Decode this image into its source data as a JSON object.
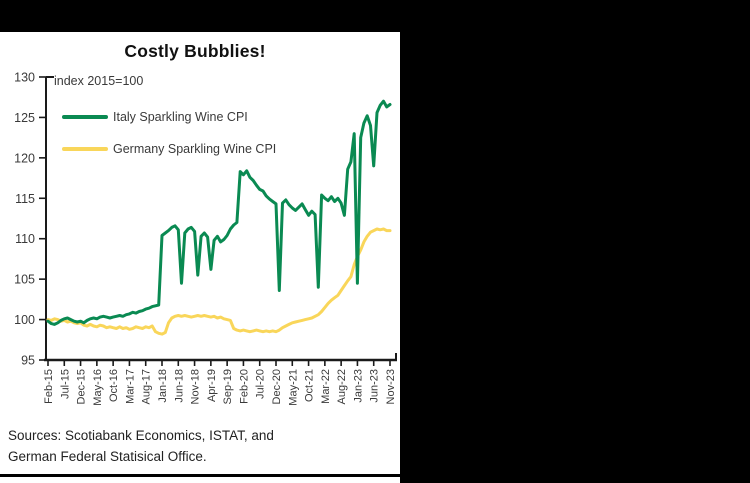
{
  "window": {
    "background_color": "#000000",
    "card_background": "#ffffff"
  },
  "card": {
    "title": "Costly Bubblies!",
    "axis_note": "index 2015=100",
    "source_line1": "Sources: Scotiabank Economics, ISTAT, and",
    "source_line2": "German Federal Statisical Office."
  },
  "chart_data": {
    "type": "line",
    "title": "Costly Bubblies!",
    "ylabel": "index 2015=100",
    "ylim": [
      95,
      130
    ],
    "y_ticks": [
      130,
      125,
      120,
      115,
      110,
      105,
      100,
      95
    ],
    "grid": false,
    "legend_position": "top-left",
    "x_unit": "month",
    "x_start": "Feb-2015",
    "x_end": "Nov-2023",
    "n_points": 106,
    "x_tick_every_months": 5,
    "x_tick_labels": [
      "Feb-15",
      "Jul-15",
      "Dec-15",
      "May-16",
      "Oct-16",
      "Mar-17",
      "Aug-17",
      "Jan-18",
      "Jun-18",
      "Nov-18",
      "Apr-19",
      "Sep-19",
      "Feb-20",
      "Jul-20",
      "Dec-20",
      "May-21",
      "Oct-21",
      "Mar-22",
      "Aug-22",
      "Jan-23",
      "Jun-23",
      "Nov-23"
    ],
    "axis_color": "#1a1a1a",
    "tick_label_color": "#3a3a3a",
    "series": [
      {
        "name": "Germany Sparkling Wine CPI",
        "color": "#f9d65a",
        "values": [
          100.0,
          99.9,
          100.1,
          100.0,
          99.8,
          99.9,
          99.7,
          99.8,
          99.6,
          99.5,
          99.6,
          99.3,
          99.2,
          99.4,
          99.2,
          99.1,
          99.3,
          99.2,
          99.0,
          99.1,
          99.0,
          98.9,
          99.1,
          98.9,
          99.0,
          98.8,
          98.9,
          99.1,
          99.0,
          98.9,
          99.1,
          99.0,
          99.2,
          98.5,
          98.3,
          98.2,
          98.4,
          99.6,
          100.2,
          100.4,
          100.5,
          100.4,
          100.5,
          100.4,
          100.3,
          100.4,
          100.5,
          100.4,
          100.5,
          100.4,
          100.3,
          100.4,
          100.2,
          100.3,
          100.1,
          100.0,
          99.9,
          98.9,
          98.7,
          98.6,
          98.7,
          98.6,
          98.5,
          98.6,
          98.7,
          98.6,
          98.5,
          98.6,
          98.5,
          98.6,
          98.5,
          98.7,
          99.0,
          99.2,
          99.4,
          99.6,
          99.7,
          99.8,
          99.9,
          100.0,
          100.1,
          100.2,
          100.4,
          100.6,
          101.0,
          101.5,
          102.0,
          102.4,
          102.7,
          103.0,
          103.6,
          104.2,
          104.8,
          105.3,
          106.8,
          107.8,
          108.6,
          109.6,
          110.3,
          110.8,
          111.0,
          111.2,
          111.1,
          111.2,
          111.0,
          111.0
        ]
      },
      {
        "name": "Italy Sparkling Wine CPI",
        "color": "#0a8a52",
        "values": [
          99.8,
          99.5,
          99.4,
          99.6,
          99.9,
          100.1,
          100.2,
          100.0,
          99.8,
          99.7,
          99.8,
          99.6,
          99.9,
          100.1,
          100.2,
          100.1,
          100.3,
          100.4,
          100.3,
          100.2,
          100.3,
          100.4,
          100.5,
          100.4,
          100.6,
          100.7,
          100.9,
          100.8,
          101.0,
          101.1,
          101.3,
          101.4,
          101.6,
          101.7,
          101.8,
          110.4,
          110.7,
          111.0,
          111.4,
          111.6,
          111.1,
          104.5,
          110.7,
          111.2,
          111.4,
          110.9,
          105.5,
          110.3,
          110.7,
          110.2,
          106.2,
          109.8,
          110.3,
          109.6,
          109.9,
          110.4,
          111.2,
          111.7,
          112.0,
          118.3,
          117.9,
          118.4,
          117.6,
          117.2,
          116.6,
          116.1,
          115.9,
          115.3,
          114.9,
          114.6,
          114.3,
          103.6,
          114.4,
          114.8,
          114.2,
          113.8,
          113.5,
          113.9,
          114.3,
          113.6,
          112.9,
          113.4,
          113.0,
          104.0,
          115.4,
          115.0,
          114.7,
          115.2,
          114.6,
          115.0,
          114.4,
          112.9,
          118.6,
          119.5,
          123.0,
          104.5,
          122.5,
          124.3,
          125.2,
          124.0,
          119.0,
          125.6,
          126.5,
          127.0,
          126.3,
          126.6
        ]
      }
    ]
  }
}
